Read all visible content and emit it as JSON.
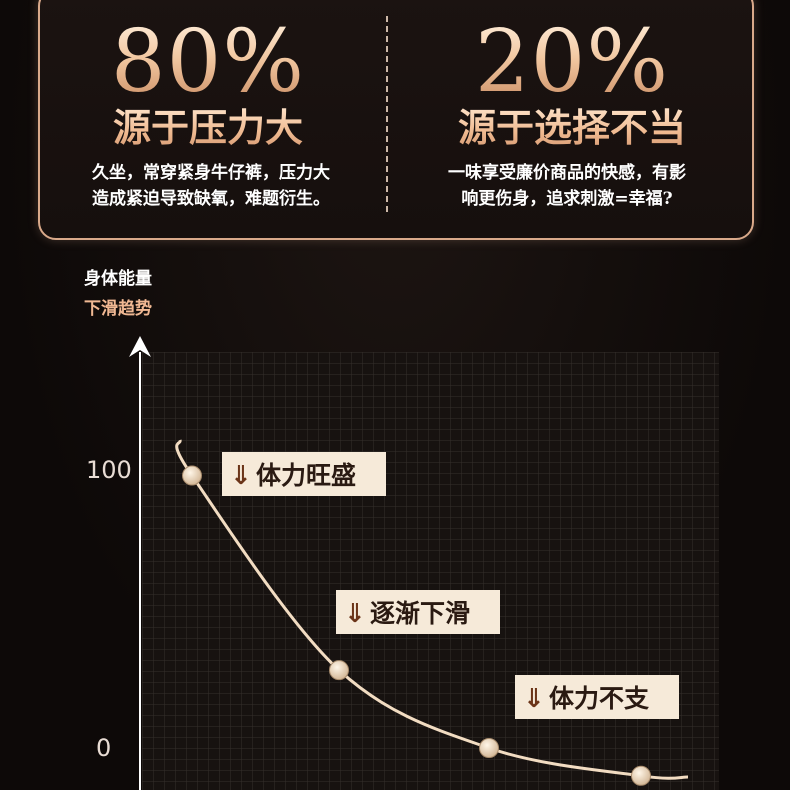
{
  "top_card": {
    "left": {
      "percent": "80%",
      "heading": "源于压力大",
      "desc_line1": "久坐，常穿紧身牛仔裤，压力大",
      "desc_line2": "造成紧迫导致缺氧，难题衍生。"
    },
    "right": {
      "percent": "20%",
      "heading": "源于选择不当",
      "desc_line1": "一味享受廉价商品的快感，有影",
      "desc_line2": "响更伤身，追求刺激=幸福?"
    }
  },
  "chart_data": {
    "type": "line",
    "ylabel_line1": "身体能量",
    "ylabel_line2": "下滑趋势",
    "yticks": [
      "100",
      "0"
    ],
    "ylim": [
      0,
      100
    ],
    "grid": true,
    "points": [
      {
        "y": 98,
        "label": "体力旺盛"
      },
      {
        "y": 28,
        "label": "逐渐下滑"
      },
      {
        "y": 0,
        "label": "体力不支"
      },
      {
        "y": -10,
        "label": ""
      }
    ],
    "colors": {
      "curve": "#f2dcc2",
      "point": "#e9d5b8",
      "label_bg": "#f6ead9",
      "grid": "#3a3430",
      "accent": "#f0b893"
    }
  }
}
